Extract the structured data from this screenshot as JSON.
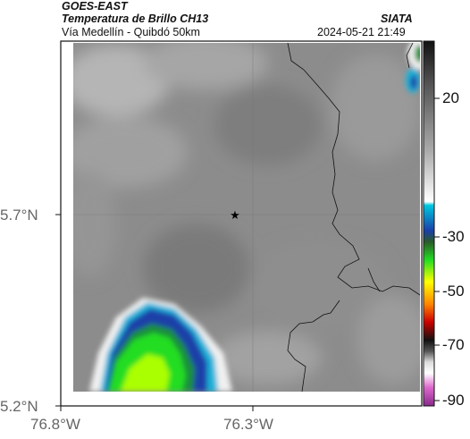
{
  "header": {
    "satellite": "GOES-EAST",
    "product": "Temperatura de Brillo CH13",
    "region": "Vía Medellín - Quibdó 50km",
    "agency": "SIATA",
    "timestamp": "2024-05-21 21:49"
  },
  "map": {
    "latitude_labels": [
      "5.7°N",
      "5.2°N"
    ],
    "longitude_labels": [
      "76.8°W",
      "76.3°W"
    ],
    "marker_icon": "star-icon",
    "colors": {
      "background_gray": "#8a8a8a",
      "cloud_white": "#f2f2f2",
      "cold_blue": "#1a3fa8",
      "cold_cyan": "#00a6d6",
      "cold_green": "#22dd22",
      "cold_lime": "#aaff00",
      "border_line": "#111111"
    }
  },
  "colorbar": {
    "tick_labels": [
      "20",
      "-30",
      "-50",
      "-70",
      "-90"
    ]
  }
}
